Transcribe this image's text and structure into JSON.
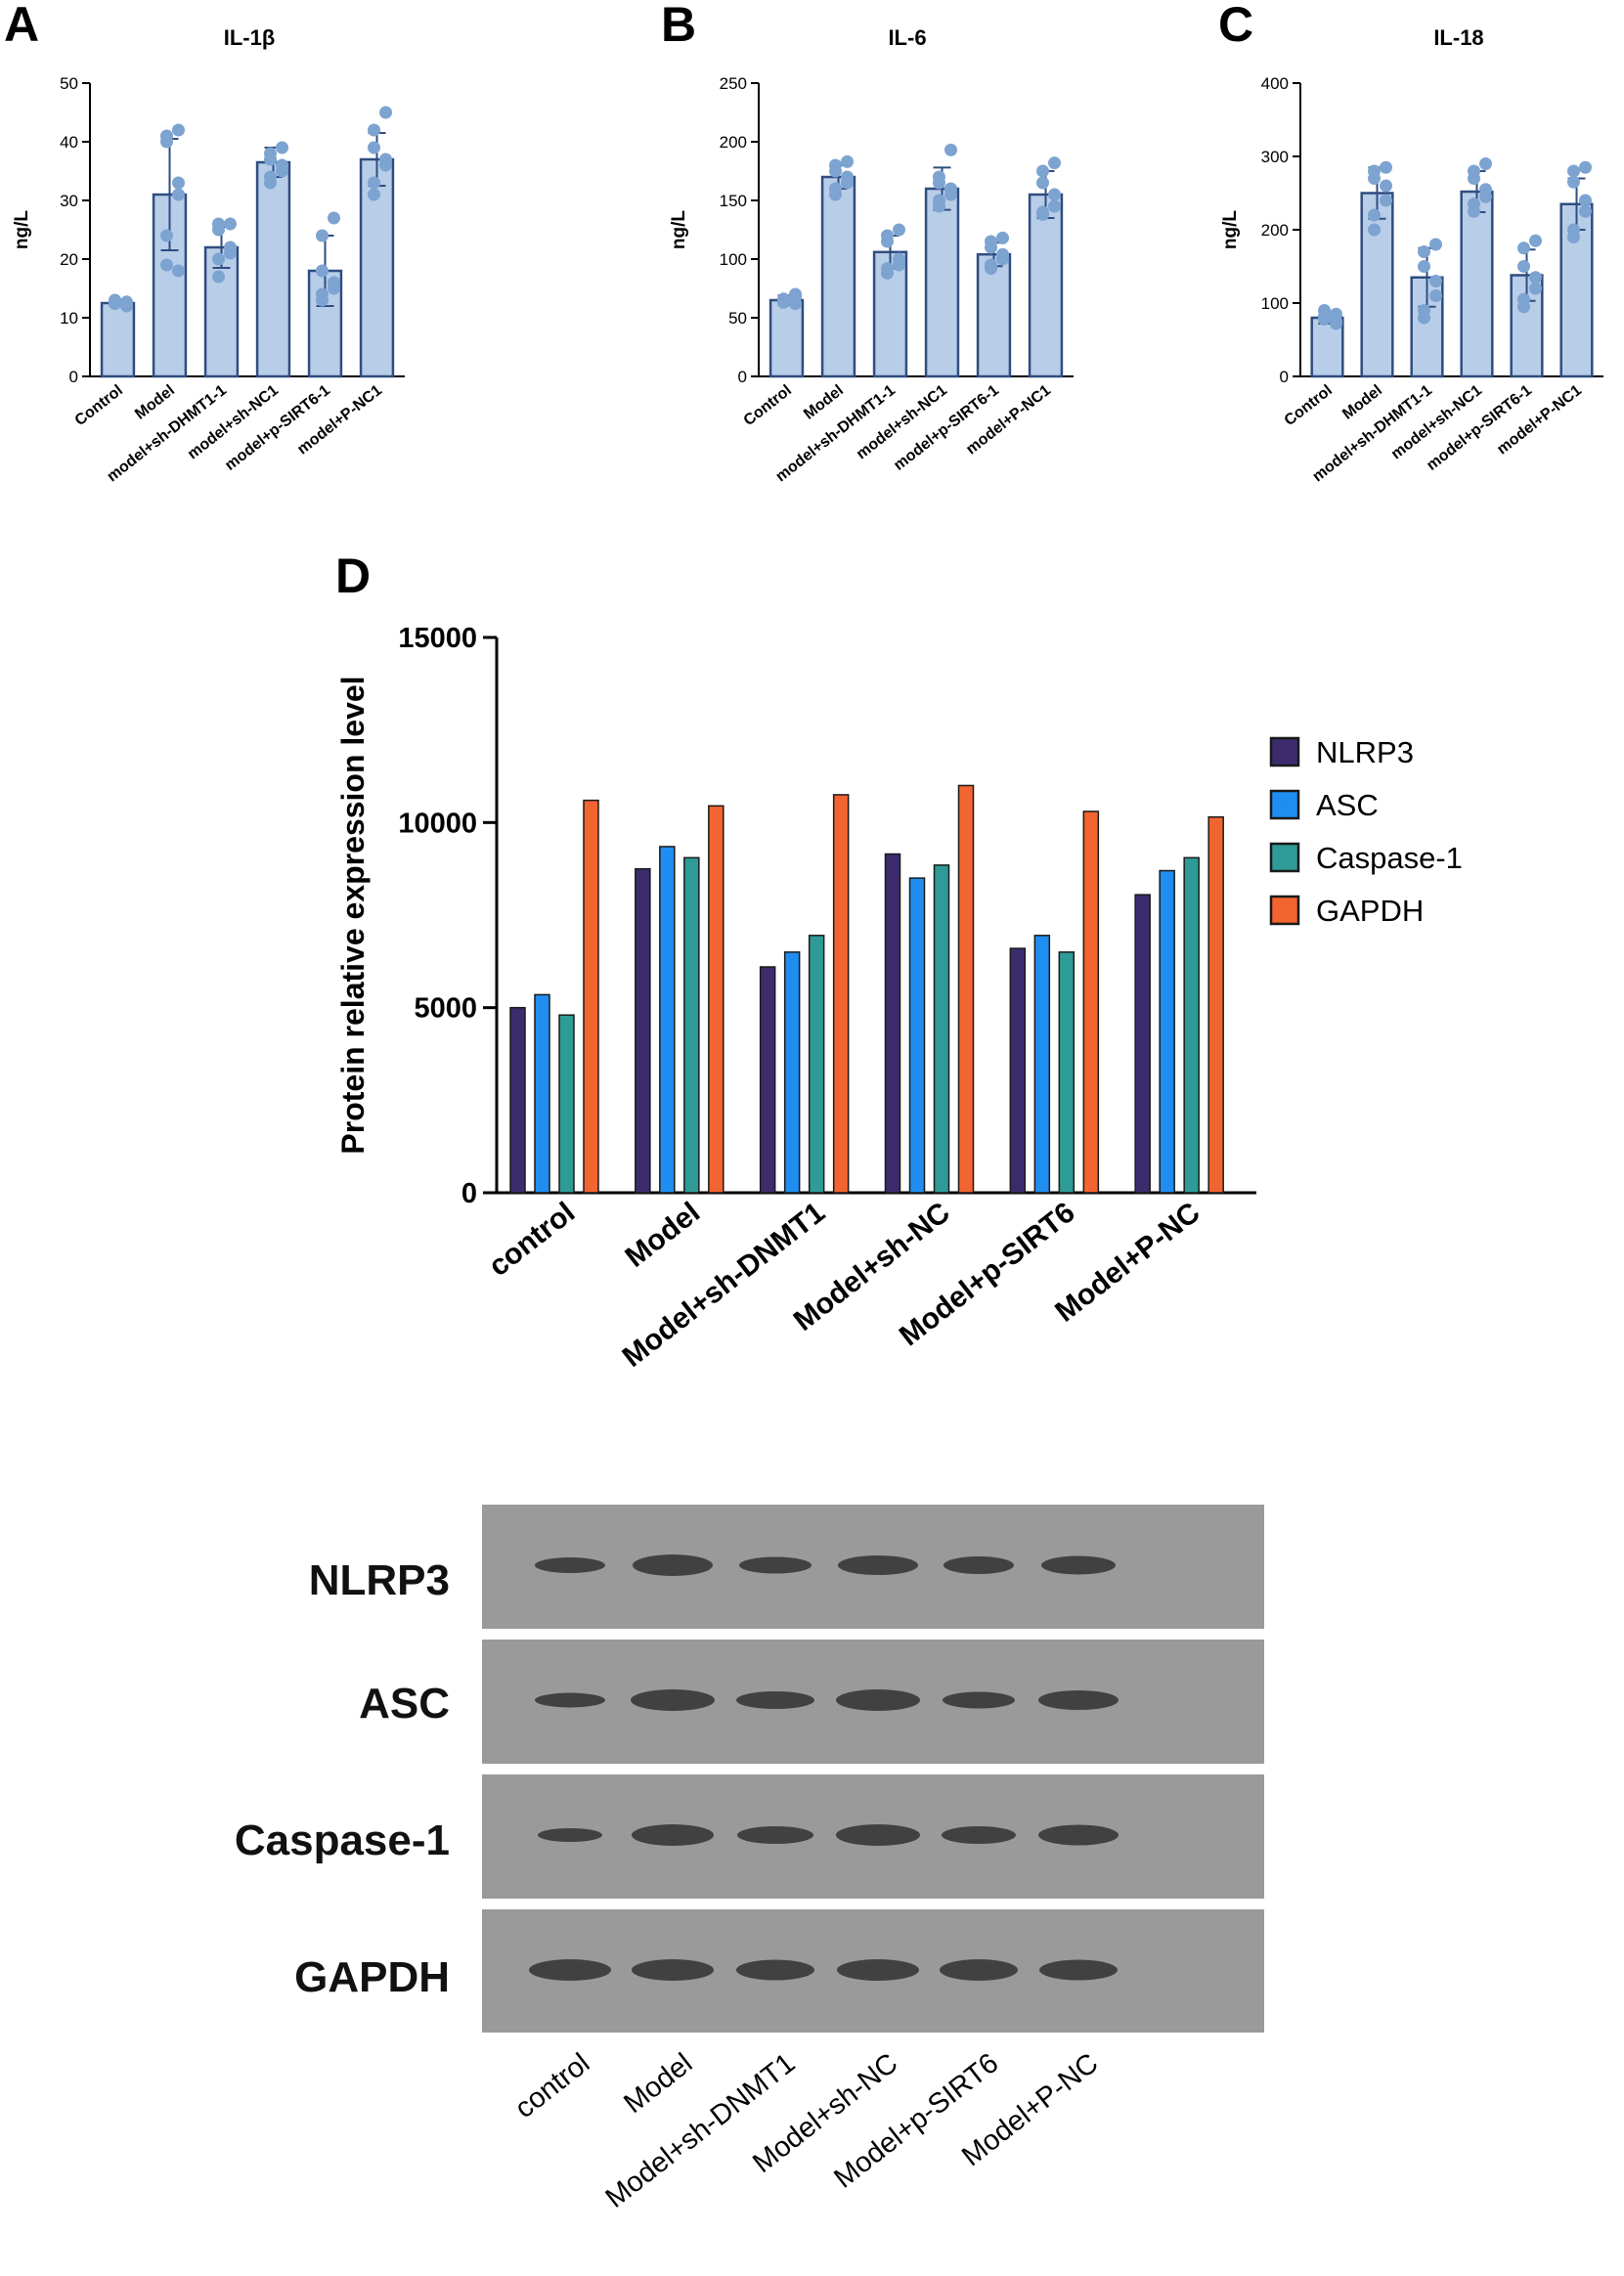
{
  "panels": {
    "a": {
      "letter": "A"
    },
    "b": {
      "letter": "B"
    },
    "c": {
      "letter": "C"
    },
    "d": {
      "letter": "D"
    }
  },
  "colors": {
    "small_bar_fill": "#b8cde8",
    "small_bar_stroke": "#2f4d80",
    "dot": "#7da3d1",
    "axis": "#000000",
    "NLRP3": "#3c2c6e",
    "ASC": "#1f8ef0",
    "Caspase-1": "#2e9b97",
    "GAPDH": "#f26430"
  },
  "chart_data": [
    {
      "type": "bar",
      "title": "IL-1β",
      "ylabel": "ng/L",
      "ylim": [
        0,
        50
      ],
      "yticks": [
        0,
        10,
        20,
        30,
        40,
        50
      ],
      "categories": [
        "Control",
        "Model",
        "model+sh-DHMT1-1",
        "model+sh-NC1",
        "model+p-SIRT6-1",
        "model+P-NC1"
      ],
      "values": [
        12.5,
        31,
        22,
        36.5,
        18,
        37
      ],
      "error": [
        0.5,
        9.5,
        3.5,
        2.5,
        6,
        4.5
      ],
      "points": [
        [
          12,
          12.5,
          13,
          12.7,
          12.3,
          12.8,
          12.4
        ],
        [
          42,
          41,
          40,
          33,
          31,
          24,
          19,
          18
        ],
        [
          26,
          25,
          26,
          22,
          21,
          20,
          17
        ],
        [
          39,
          38,
          37,
          36,
          35,
          34,
          33
        ],
        [
          27,
          24,
          18,
          16,
          15,
          14,
          13
        ],
        [
          45,
          42,
          39,
          37,
          36,
          33,
          31
        ]
      ]
    },
    {
      "type": "bar",
      "title": "IL-6",
      "ylabel": "ng/L",
      "ylim": [
        0,
        250
      ],
      "yticks": [
        0,
        50,
        100,
        150,
        200,
        250
      ],
      "categories": [
        "Control",
        "Model",
        "model+sh-DHMT1-1",
        "model+sh-NC1",
        "model+p-SIRT6-1",
        "model+P-NC1"
      ],
      "values": [
        65,
        170,
        106,
        160,
        104,
        155
      ],
      "error": [
        4,
        10,
        14,
        18,
        10,
        20
      ],
      "points": [
        [
          62,
          64,
          66,
          68,
          70,
          63,
          65
        ],
        [
          183,
          180,
          175,
          170,
          165,
          160,
          155
        ],
        [
          125,
          120,
          115,
          100,
          95,
          92,
          88
        ],
        [
          193,
          170,
          165,
          160,
          155,
          150,
          145
        ],
        [
          118,
          115,
          110,
          104,
          100,
          95,
          92
        ],
        [
          182,
          175,
          165,
          155,
          145,
          140,
          138
        ]
      ]
    },
    {
      "type": "bar",
      "title": "IL-18",
      "ylabel": "ng/L",
      "ylim": [
        0,
        400
      ],
      "yticks": [
        0,
        100,
        200,
        300,
        400
      ],
      "categories": [
        "Control",
        "Model",
        "model+sh-DHMT1-1",
        "model+sh-NC1",
        "model+p-SIRT6-1",
        "model+P-NC1"
      ],
      "values": [
        80,
        250,
        135,
        252,
        138,
        235
      ],
      "error": [
        8,
        35,
        40,
        28,
        35,
        35
      ],
      "points": [
        [
          85,
          90,
          80,
          75,
          72,
          78,
          82
        ],
        [
          285,
          280,
          270,
          260,
          240,
          220,
          200
        ],
        [
          180,
          170,
          150,
          130,
          110,
          90,
          80
        ],
        [
          290,
          280,
          270,
          255,
          245,
          235,
          225
        ],
        [
          185,
          175,
          150,
          135,
          120,
          105,
          95
        ],
        [
          285,
          280,
          265,
          240,
          225,
          200,
          190
        ]
      ]
    },
    {
      "type": "bar",
      "ylabel": "Protein relative expression level",
      "ylim": [
        0,
        15000
      ],
      "yticks": [
        0,
        5000,
        10000,
        15000
      ],
      "categories": [
        "control",
        "Model",
        "Model+sh-DNMT1",
        "Model+sh-NC",
        "Model+p-SIRT6",
        "Model+P-NC"
      ],
      "legend_position": "right",
      "series": [
        {
          "name": "NLRP3",
          "values": [
            5000,
            8750,
            6100,
            9150,
            6600,
            8050
          ]
        },
        {
          "name": "ASC",
          "values": [
            5350,
            9350,
            6500,
            8500,
            6950,
            8700
          ]
        },
        {
          "name": "Caspase-1",
          "values": [
            4800,
            9050,
            6950,
            8850,
            6500,
            9050
          ]
        },
        {
          "name": "GAPDH",
          "values": [
            10600,
            10450,
            10750,
            11000,
            10300,
            10150
          ]
        }
      ]
    }
  ],
  "western_blot": {
    "rows": [
      "NLRP3",
      "ASC",
      "Caspase-1",
      "GAPDH"
    ],
    "lanes": [
      "control",
      "Model",
      "Model+sh-DNMT1",
      "Model+sh-NC",
      "Model+p-SIRT6",
      "Model+P-NC"
    ]
  }
}
